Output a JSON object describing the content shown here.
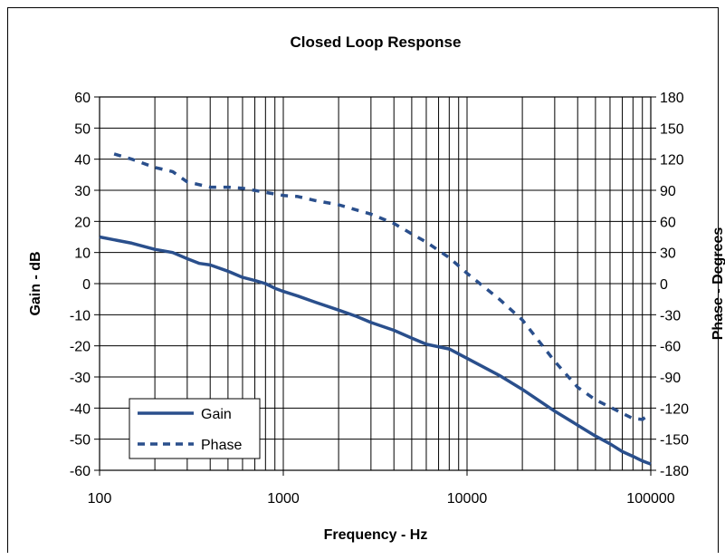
{
  "chart_data": {
    "type": "line",
    "title": "Closed Loop Response",
    "xlabel": "Frequency - Hz",
    "ylabel": "Gain - dB",
    "y2label": "Phase - Degrees",
    "x_scale": "log",
    "xlim": [
      100,
      100000
    ],
    "ylim": [
      -60,
      60
    ],
    "y2lim": [
      -180,
      180
    ],
    "x_ticks": [
      100,
      1000,
      10000,
      100000
    ],
    "x_tick_labels": [
      "100",
      "1000",
      "10000",
      "100000"
    ],
    "y_ticks": [
      60,
      50,
      40,
      30,
      20,
      10,
      0,
      -10,
      -20,
      -30,
      -40,
      -50,
      -60
    ],
    "y2_ticks": [
      180,
      150,
      120,
      90,
      60,
      30,
      0,
      -30,
      -60,
      -90,
      -120,
      -150,
      -180
    ],
    "grid": true,
    "legend_position": "bottom-left",
    "series": [
      {
        "name": "Gain",
        "axis": "left",
        "style": "solid",
        "color": "#2a4f8c",
        "x": [
          100,
          150,
          200,
          250,
          300,
          350,
          400,
          500,
          600,
          700,
          800,
          900,
          1000,
          1200,
          1500,
          2000,
          2500,
          3000,
          4000,
          5000,
          6000,
          8000,
          10000,
          15000,
          20000,
          30000,
          40000,
          50000,
          60000,
          70000,
          80000,
          90000,
          100000
        ],
        "values": [
          15,
          13,
          11,
          10,
          8,
          6.5,
          6,
          4,
          2,
          1,
          0,
          -1.5,
          -2.5,
          -4,
          -6,
          -8.5,
          -10.5,
          -12.5,
          -15,
          -17.5,
          -19.5,
          -21,
          -24,
          -29.5,
          -34,
          -41,
          -45.5,
          -49,
          -51.5,
          -54,
          -55.5,
          -57,
          -58
        ]
      },
      {
        "name": "Phase",
        "axis": "right",
        "style": "dashed",
        "color": "#2a4f8c",
        "x": [
          120,
          150,
          200,
          250,
          300,
          400,
          500,
          600,
          800,
          1000,
          1200,
          1500,
          2000,
          2500,
          3000,
          4000,
          5000,
          6000,
          8000,
          10000,
          15000,
          20000,
          30000,
          40000,
          50000,
          60000,
          70000,
          80000,
          90000,
          100000
        ],
        "values": [
          125,
          120,
          112,
          108,
          98,
          93,
          93,
          92,
          88,
          85,
          84,
          80,
          76,
          71,
          67,
          58,
          48,
          40,
          25,
          10,
          -15,
          -35,
          -75,
          -100,
          -112,
          -119,
          -125,
          -130,
          -131,
          -125
        ]
      }
    ]
  }
}
